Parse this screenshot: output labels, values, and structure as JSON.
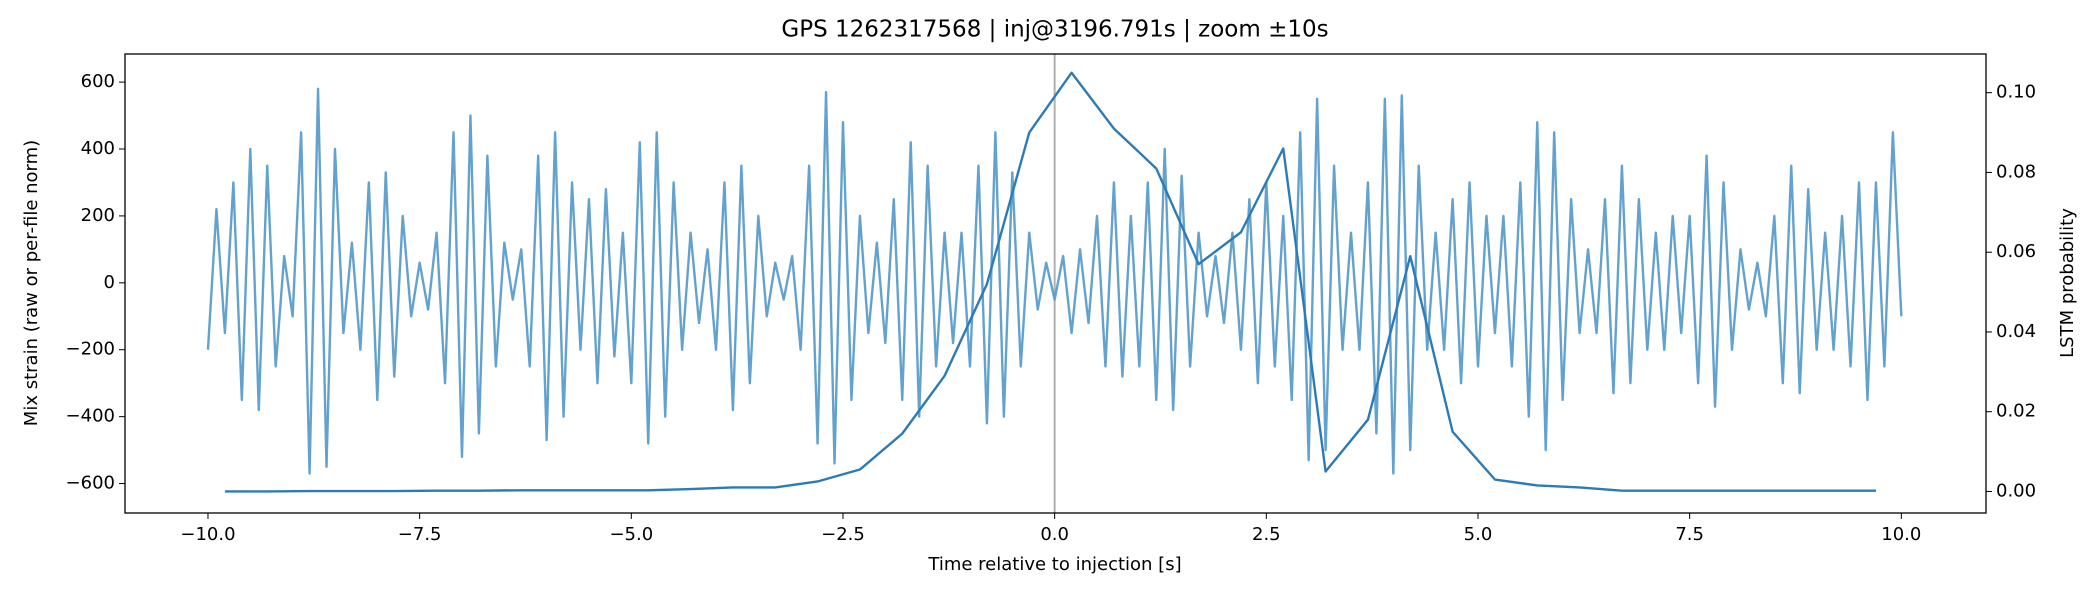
{
  "chart_data": {
    "type": "line",
    "title": "GPS 1262317568 | inj@3196.791s | zoom ±10s",
    "xlabel": "Time relative to injection [s]",
    "ylabel": "Mix strain (raw or per-file norm)",
    "y2label": "LSTM probability",
    "xlim": [
      -10.98,
      11.0
    ],
    "ylim": [
      -688,
      684
    ],
    "y2lim": [
      -0.0054,
      0.1097
    ],
    "xticks": [
      {
        "value": -10,
        "label": "−10.0"
      },
      {
        "value": -7.5,
        "label": "−7.5"
      },
      {
        "value": -5,
        "label": "−5.0"
      },
      {
        "value": -2.5,
        "label": "−2.5"
      },
      {
        "value": 0,
        "label": "0.0"
      },
      {
        "value": 2.5,
        "label": "2.5"
      },
      {
        "value": 5,
        "label": "5.0"
      },
      {
        "value": 7.5,
        "label": "7.5"
      },
      {
        "value": 10,
        "label": "10.0"
      }
    ],
    "yticks": [
      {
        "value": -600,
        "label": "−600"
      },
      {
        "value": -400,
        "label": "−400"
      },
      {
        "value": -200,
        "label": "−200"
      },
      0,
      200,
      400,
      600
    ],
    "y2ticks": [
      {
        "value": 0,
        "label": "0.00"
      },
      {
        "value": 0.02,
        "label": "0.02"
      },
      {
        "value": 0.04,
        "label": "0.04"
      },
      {
        "value": 0.06,
        "label": "0.06"
      },
      {
        "value": 0.08,
        "label": "0.08"
      },
      {
        "value": 0.1,
        "label": "0.10"
      }
    ],
    "vline_x": 0,
    "vline_color": "#b0b0b0",
    "series": [
      {
        "color": "#5b9dcb",
        "x": [
          -10,
          -9.9,
          -9.8,
          -9.7,
          -9.6,
          -9.5,
          -9.4,
          -9.3,
          -9.2,
          -9.1,
          -9,
          -8.9,
          -8.8,
          -8.7,
          -8.6,
          -8.5,
          -8.4,
          -8.3,
          -8.2,
          -8.1,
          -8,
          -7.9,
          -7.8,
          -7.7,
          -7.6,
          -7.5,
          -7.4,
          -7.3,
          -7.2,
          -7.1,
          -7,
          -6.9,
          -6.8,
          -6.7,
          -6.6,
          -6.5,
          -6.4,
          -6.3,
          -6.2,
          -6.1,
          -6,
          -5.9,
          -5.8,
          -5.7,
          -5.6,
          -5.5,
          -5.4,
          -5.3,
          -5.2,
          -5.1,
          -5,
          -4.9,
          -4.8,
          -4.7,
          -4.6,
          -4.5,
          -4.4,
          -4.3,
          -4.2,
          -4.1,
          -4,
          -3.9,
          -3.8,
          -3.7,
          -3.6,
          -3.5,
          -3.4,
          -3.3,
          -3.2,
          -3.1,
          -3,
          -2.9,
          -2.8,
          -2.7,
          -2.6,
          -2.5,
          -2.4,
          -2.3,
          -2.2,
          -2.1,
          -2,
          -1.9,
          -1.8,
          -1.7,
          -1.6,
          -1.5,
          -1.4,
          -1.3,
          -1.2,
          -1.1,
          -1,
          -0.9,
          -0.8,
          -0.7,
          -0.6,
          -0.5,
          -0.4,
          -0.3,
          -0.2,
          -0.1,
          0,
          0.1,
          0.2,
          0.3,
          0.4,
          0.5,
          0.6,
          0.7,
          0.8,
          0.9,
          1,
          1.1,
          1.2,
          1.3,
          1.4,
          1.5,
          1.6,
          1.7,
          1.8,
          1.9,
          2,
          2.1,
          2.2,
          2.3,
          2.4,
          2.5,
          2.6,
          2.7,
          2.8,
          2.9,
          3,
          3.1,
          3.2,
          3.3,
          3.4,
          3.5,
          3.6,
          3.7,
          3.8,
          3.9,
          4,
          4.1,
          4.2,
          4.3,
          4.4,
          4.5,
          4.6,
          4.7,
          4.8,
          4.9,
          5,
          5.1,
          5.2,
          5.3,
          5.4,
          5.5,
          5.6,
          5.7,
          5.8,
          5.9,
          6,
          6.1,
          6.2,
          6.3,
          6.4,
          6.5,
          6.6,
          6.7,
          6.8,
          6.9,
          7,
          7.1,
          7.2,
          7.3,
          7.4,
          7.5,
          7.6,
          7.7,
          7.8,
          7.9,
          8,
          8.1,
          8.2,
          8.3,
          8.4,
          8.5,
          8.6,
          8.7,
          8.8,
          8.9,
          9,
          9.1,
          9.2,
          9.3,
          9.4,
          9.5,
          9.6,
          9.7,
          9.8,
          9.9,
          10
        ],
        "values": [
          -200,
          220,
          -150,
          300,
          -350,
          400,
          -380,
          350,
          -250,
          80,
          -100,
          450,
          -570,
          580,
          -550,
          400,
          -150,
          120,
          -200,
          300,
          -350,
          330,
          -280,
          200,
          -100,
          60,
          -80,
          150,
          -300,
          450,
          -520,
          500,
          -450,
          380,
          -250,
          120,
          -50,
          100,
          -250,
          380,
          -470,
          450,
          -400,
          300,
          -200,
          250,
          -300,
          280,
          -220,
          150,
          -300,
          420,
          -480,
          450,
          -400,
          300,
          -200,
          150,
          -120,
          100,
          -200,
          300,
          -380,
          350,
          -300,
          200,
          -100,
          60,
          -50,
          80,
          -200,
          350,
          -480,
          570,
          -540,
          480,
          -350,
          200,
          -150,
          120,
          -180,
          250,
          -350,
          420,
          -400,
          350,
          -250,
          150,
          -180,
          150,
          -250,
          350,
          -420,
          450,
          -400,
          330,
          -250,
          150,
          -80,
          60,
          -50,
          80,
          -150,
          100,
          -120,
          200,
          -250,
          300,
          -280,
          200,
          -250,
          300,
          -350,
          400,
          -380,
          320,
          -250,
          150,
          -100,
          80,
          -120,
          150,
          -200,
          250,
          -300,
          300,
          -250,
          200,
          -350,
          450,
          -530,
          550,
          -500,
          350,
          -200,
          150,
          -200,
          300,
          -450,
          550,
          -570,
          560,
          -500,
          350,
          -200,
          150,
          -200,
          250,
          -300,
          300,
          -250,
          200,
          -150,
          200,
          -250,
          300,
          -400,
          480,
          -500,
          450,
          -350,
          250,
          -150,
          100,
          -150,
          250,
          -330,
          350,
          -300,
          250,
          -200,
          150,
          -200,
          200,
          -150,
          200,
          -300,
          380,
          -370,
          300,
          -200,
          100,
          -80,
          60,
          -100,
          200,
          -300,
          350,
          -330,
          280,
          -200,
          150,
          -200,
          200,
          -250,
          300,
          -350,
          300,
          -250,
          450,
          -100
        ]
      },
      {
        "color": "#2c7bb6",
        "axis": "y2",
        "x": [
          -9.8,
          -9.3,
          -8.8,
          -8.3,
          -7.8,
          -7.3,
          -6.8,
          -6.3,
          -5.8,
          -5.3,
          -4.8,
          -4.3,
          -3.8,
          -3.3,
          -2.8,
          -2.3,
          -1.8,
          -1.3,
          -0.8,
          -0.3,
          0.2,
          0.7,
          1.2,
          1.7,
          2.2,
          2.7,
          3.2,
          3.7,
          4.2,
          4.7,
          5.2,
          5.7,
          6.2,
          6.7,
          7.2,
          7.7,
          8.2,
          8.7,
          9.2,
          9.7
        ],
        "values": [
          0,
          0,
          0.0001,
          0.0001,
          0.0001,
          0.0002,
          0.0002,
          0.0003,
          0.0003,
          0.0003,
          0.0003,
          0.0006,
          0.001,
          0.001,
          0.0025,
          0.0055,
          0.0145,
          0.029,
          0.052,
          0.09,
          0.105,
          0.091,
          0.081,
          0.057,
          0.065,
          0.086,
          0.005,
          0.018,
          0.059,
          0.015,
          0.003,
          0.0015,
          0.001,
          0.0002,
          0.0002,
          0.0002,
          0.0002,
          0.0002,
          0.0002,
          0.0002
        ]
      }
    ]
  }
}
